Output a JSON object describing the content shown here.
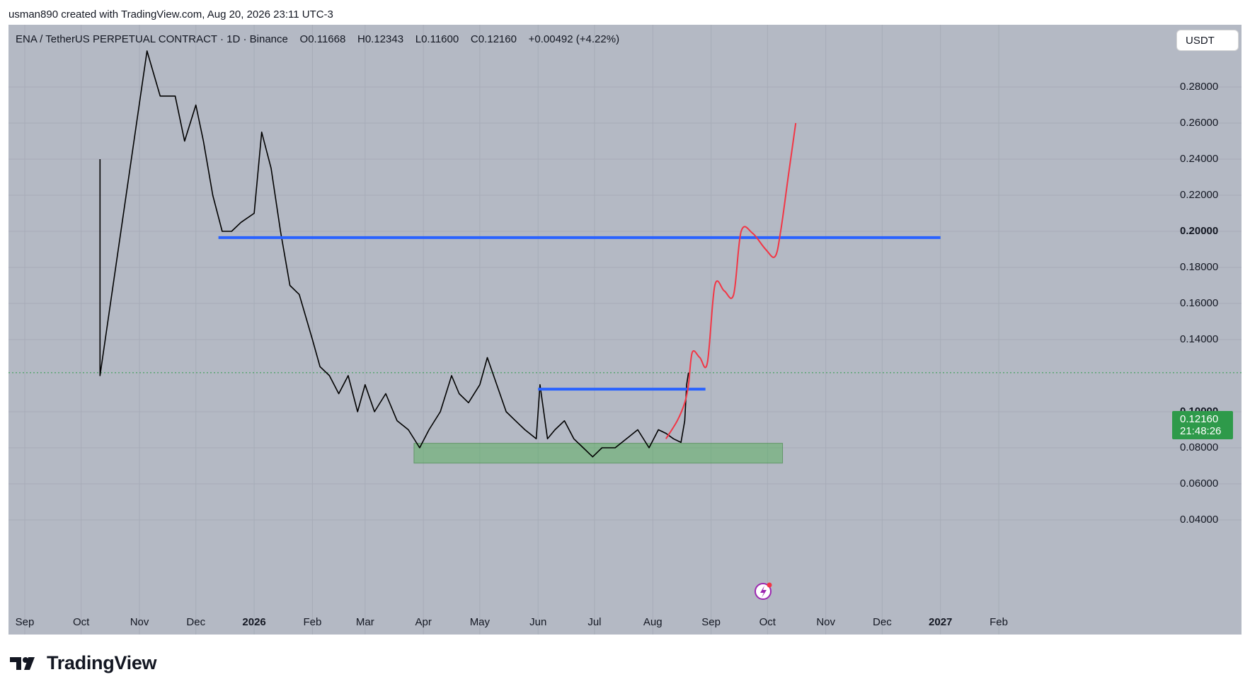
{
  "caption": "usman890 created with TradingView.com, Aug 20, 2026 23:11 UTC-3",
  "header": {
    "symbol": "ENA / TetherUS PERPETUAL CONTRACT · 1D · Binance",
    "open": "O0.11668",
    "high": "H0.12343",
    "low": "L0.11600",
    "close": "C0.12160",
    "change": "+0.00492 (+4.22%)"
  },
  "currency_button": "USDT",
  "price_tag": {
    "price": "0.12160",
    "countdown": "21:48:26"
  },
  "footer": {
    "brand": "TradingView"
  },
  "colors": {
    "background": "#b4b9c4",
    "grid": "#a7acb8",
    "candles": "#000000",
    "level_lines": "#2962ff",
    "projection": "#f23645",
    "zone": "#4caf50",
    "price_tag": "#2e9a4a"
  },
  "chart_data": {
    "type": "line",
    "title": "ENA / TetherUS PERPETUAL CONTRACT · 1D · Binance",
    "xlabel": "",
    "ylabel": "",
    "y_ticks": [
      {
        "label": "0.28000",
        "value": 0.28,
        "bold": false
      },
      {
        "label": "0.26000",
        "value": 0.26,
        "bold": false
      },
      {
        "label": "0.24000",
        "value": 0.24,
        "bold": false
      },
      {
        "label": "0.22000",
        "value": 0.22,
        "bold": false
      },
      {
        "label": "0.20000",
        "value": 0.2,
        "bold": true
      },
      {
        "label": "0.18000",
        "value": 0.18,
        "bold": false
      },
      {
        "label": "0.16000",
        "value": 0.16,
        "bold": false
      },
      {
        "label": "0.14000",
        "value": 0.14,
        "bold": false
      },
      {
        "label": "0.10000",
        "value": 0.1,
        "bold": true
      },
      {
        "label": "0.08000",
        "value": 0.08,
        "bold": false
      },
      {
        "label": "0.06000",
        "value": 0.06,
        "bold": false
      },
      {
        "label": "0.04000",
        "value": 0.04,
        "bold": false
      }
    ],
    "x_ticks": [
      {
        "label": "Sep",
        "date": "2025-09-01",
        "bold": false
      },
      {
        "label": "Oct",
        "date": "2025-10-01",
        "bold": false
      },
      {
        "label": "Nov",
        "date": "2025-11-01",
        "bold": false
      },
      {
        "label": "Dec",
        "date": "2025-12-01",
        "bold": false
      },
      {
        "label": "2026",
        "date": "2026-01-01",
        "bold": true
      },
      {
        "label": "Feb",
        "date": "2026-02-01",
        "bold": false
      },
      {
        "label": "Mar",
        "date": "2026-03-01",
        "bold": false
      },
      {
        "label": "Apr",
        "date": "2026-04-01",
        "bold": false
      },
      {
        "label": "May",
        "date": "2026-05-01",
        "bold": false
      },
      {
        "label": "Jun",
        "date": "2026-06-01",
        "bold": false
      },
      {
        "label": "Jul",
        "date": "2026-07-01",
        "bold": false
      },
      {
        "label": "Aug",
        "date": "2026-08-01",
        "bold": false
      },
      {
        "label": "Sep",
        "date": "2026-09-01",
        "bold": false
      },
      {
        "label": "Oct",
        "date": "2026-10-01",
        "bold": false
      },
      {
        "label": "Nov",
        "date": "2026-11-01",
        "bold": false
      },
      {
        "label": "Dec",
        "date": "2026-12-01",
        "bold": false
      },
      {
        "label": "2027",
        "date": "2027-01-01",
        "bold": true
      },
      {
        "label": "Feb",
        "date": "2027-02-01",
        "bold": false
      }
    ],
    "grid": true,
    "series": [
      {
        "type": "price",
        "x": [
          "2025-10-11",
          "2025-10-11",
          "2025-11-05",
          "2025-11-12",
          "2025-11-20",
          "2025-11-25",
          "2025-12-01",
          "2025-12-05",
          "2025-12-10",
          "2025-12-15",
          "2025-12-20",
          "2025-12-25",
          "2026-01-01",
          "2026-01-05",
          "2026-01-10",
          "2026-01-15",
          "2026-01-20",
          "2026-01-25",
          "2026-02-01",
          "2026-02-05",
          "2026-02-10",
          "2026-02-15",
          "2026-02-20",
          "2026-02-25",
          "2026-03-01",
          "2026-03-06",
          "2026-03-12",
          "2026-03-18",
          "2026-03-24",
          "2026-03-30",
          "2026-04-04",
          "2026-04-10",
          "2026-04-16",
          "2026-04-20",
          "2026-04-25",
          "2026-05-01",
          "2026-05-05",
          "2026-05-10",
          "2026-05-15",
          "2026-05-20",
          "2026-05-25",
          "2026-05-31",
          "2026-06-02",
          "2026-06-06",
          "2026-06-10",
          "2026-06-15",
          "2026-06-20",
          "2026-06-25",
          "2026-06-30",
          "2026-07-05",
          "2026-07-12",
          "2026-07-18",
          "2026-07-24",
          "2026-07-30",
          "2026-08-04",
          "2026-08-08",
          "2026-08-12",
          "2026-08-16",
          "2026-08-18",
          "2026-08-19",
          "2026-08-20"
        ],
        "values": [
          0.24,
          0.12,
          0.3,
          0.275,
          0.275,
          0.25,
          0.27,
          0.25,
          0.22,
          0.2,
          0.2,
          0.205,
          0.21,
          0.255,
          0.235,
          0.2,
          0.17,
          0.165,
          0.14,
          0.125,
          0.12,
          0.11,
          0.12,
          0.1,
          0.115,
          0.1,
          0.11,
          0.095,
          0.09,
          0.08,
          0.09,
          0.1,
          0.12,
          0.11,
          0.105,
          0.115,
          0.13,
          0.115,
          0.1,
          0.095,
          0.09,
          0.085,
          0.115,
          0.085,
          0.09,
          0.095,
          0.085,
          0.08,
          0.075,
          0.08,
          0.08,
          0.085,
          0.09,
          0.08,
          0.09,
          0.088,
          0.085,
          0.083,
          0.095,
          0.115,
          0.1216
        ]
      },
      {
        "type": "projection",
        "x": [
          "2026-08-08",
          "2026-08-14",
          "2026-08-18",
          "2026-08-20",
          "2026-08-22",
          "2026-08-26",
          "2026-08-30",
          "2026-09-03",
          "2026-09-08",
          "2026-09-13",
          "2026-09-17",
          "2026-09-23",
          "2026-09-30",
          "2026-10-05",
          "2026-10-08",
          "2026-10-12",
          "2026-10-16"
        ],
        "values": [
          0.085,
          0.095,
          0.105,
          0.115,
          0.133,
          0.13,
          0.127,
          0.17,
          0.167,
          0.165,
          0.2,
          0.199,
          0.19,
          0.186,
          0.2,
          0.23,
          0.26
        ]
      }
    ],
    "levels": [
      {
        "value": 0.1965,
        "x_start": "2025-12-13",
        "x_end": "2027-01-01"
      },
      {
        "value": 0.1125,
        "x_start": "2026-06-01",
        "x_end": "2026-08-29"
      }
    ],
    "zone": {
      "y_min": 0.0715,
      "y_max": 0.0825,
      "x_start": "2026-03-27",
      "x_end": "2026-10-09"
    },
    "current_price": 0.1216
  }
}
